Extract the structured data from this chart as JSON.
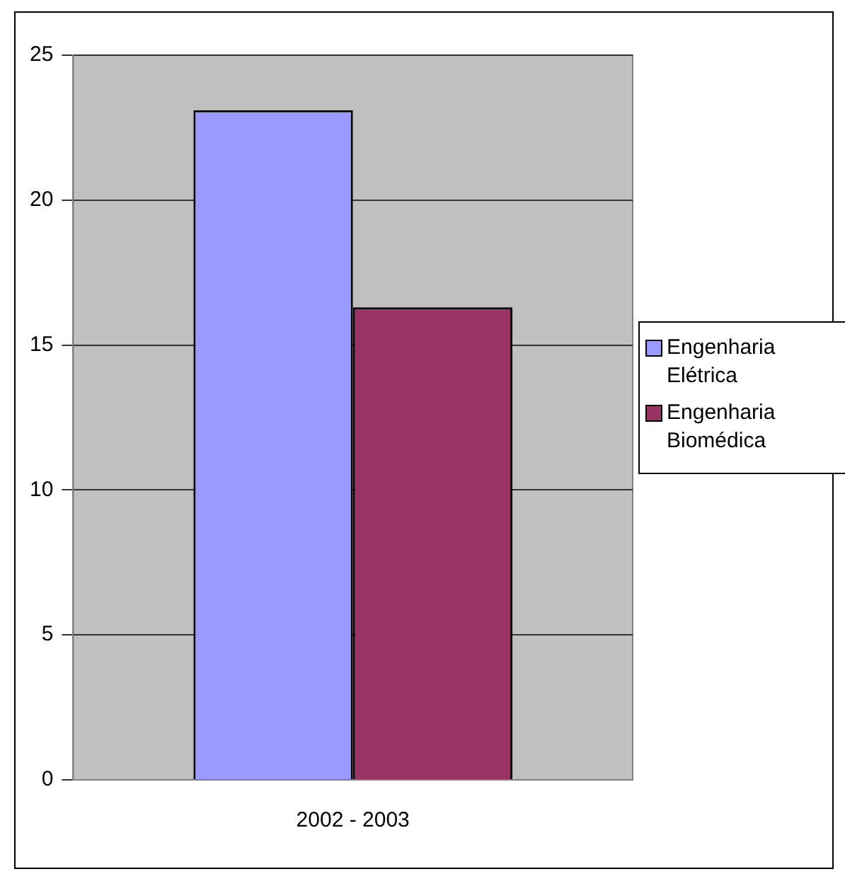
{
  "chart_data": {
    "type": "bar",
    "categories": [
      "2002 - 2003"
    ],
    "series": [
      {
        "name": "Engenharia Elétrica",
        "color": "#9999ff",
        "values": [
          23.1
        ]
      },
      {
        "name": "Engenharia Biomédica",
        "color": "#993366",
        "values": [
          16.3
        ]
      }
    ],
    "ylim": [
      0,
      25
    ],
    "yticks": [
      0,
      5,
      10,
      15,
      20,
      25
    ],
    "grid": "y",
    "legend": "right"
  }
}
